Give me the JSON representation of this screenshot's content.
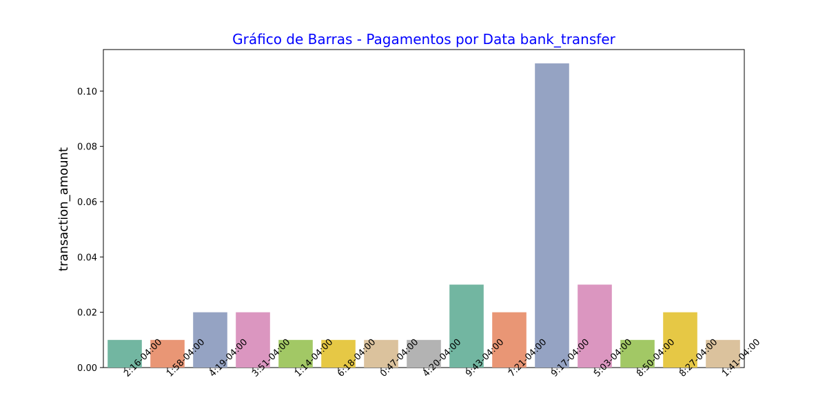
{
  "chart_data": {
    "type": "bar",
    "title": "Gráfico de Barras - Pagamentos por Data bank_transfer",
    "title_color": "#0000ff",
    "xlabel": "",
    "ylabel": "transaction_amount",
    "ylim": [
      0,
      0.115
    ],
    "yticks": [
      "0.00",
      "0.02",
      "0.04",
      "0.06",
      "0.08",
      "0.10"
    ],
    "ytick_values": [
      0,
      0.02,
      0.04,
      0.06,
      0.08,
      0.1
    ],
    "categories": [
      "2:16-04:00",
      "1:58-04:00",
      "4:19-04:00",
      "3:51-04:00",
      "1:14-04:00",
      "6:18-04:00",
      "0:47-04:00",
      "4:20-04:00",
      "9:43-04:00",
      "7:21-04:00",
      "9:17-04:00",
      "5:03-04:00",
      "8:50-04:00",
      "8:27-04:00",
      "1:41-04:00"
    ],
    "values": [
      0.01,
      0.01,
      0.02,
      0.02,
      0.01,
      0.01,
      0.01,
      0.01,
      0.03,
      0.02,
      0.11,
      0.03,
      0.01,
      0.02,
      0.01
    ],
    "colors": [
      "#72b6a1",
      "#e99675",
      "#95a3c3",
      "#db96c0",
      "#a2c865",
      "#e6c845",
      "#dbc29d",
      "#b3b3b3",
      "#72b6a1",
      "#e99675",
      "#95a3c3",
      "#db96c0",
      "#a2c865",
      "#e6c845",
      "#dbc29d"
    ],
    "grid": false
  }
}
